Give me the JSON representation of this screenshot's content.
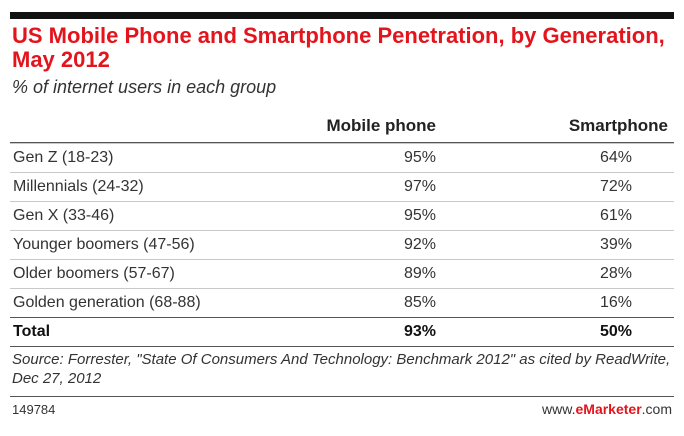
{
  "title": "US Mobile Phone and Smartphone Penetration, by Generation, May 2012",
  "subtitle": "% of internet users in each group",
  "columns": [
    "",
    "Mobile phone",
    "Smartphone"
  ],
  "rows": [
    {
      "label": "Gen Z (18-23)",
      "mobile": "95%",
      "smart": "64%"
    },
    {
      "label": "Millennials (24-32)",
      "mobile": "97%",
      "smart": "72%"
    },
    {
      "label": "Gen X (33-46)",
      "mobile": "95%",
      "smart": "61%"
    },
    {
      "label": "Younger boomers (47-56)",
      "mobile": "92%",
      "smart": "39%"
    },
    {
      "label": "Older boomers (57-67)",
      "mobile": "89%",
      "smart": "28%"
    },
    {
      "label": "Golden generation (68-88)",
      "mobile": "85%",
      "smart": "16%"
    }
  ],
  "total": {
    "label": "Total",
    "mobile": "93%",
    "smart": "50%"
  },
  "source": "Source: Forrester, \"State Of Consumers And Technology: Benchmark 2012\" as cited by ReadWrite, Dec 27, 2012",
  "footer": {
    "id": "149784",
    "brand_prefix": "www.",
    "brand_name": "eMarketer",
    "brand_suffix": ".com"
  },
  "colors": {
    "title": "#e3141c",
    "rule": "#111111"
  },
  "chart_data": {
    "type": "table",
    "title": "US Mobile Phone and Smartphone Penetration, by Generation, May 2012",
    "subtitle": "% of internet users in each group",
    "categories": [
      "Gen Z (18-23)",
      "Millennials (24-32)",
      "Gen X (33-46)",
      "Younger boomers (47-56)",
      "Older boomers (57-67)",
      "Golden generation (68-88)",
      "Total"
    ],
    "series": [
      {
        "name": "Mobile phone",
        "values": [
          95,
          97,
          95,
          92,
          89,
          85,
          93
        ]
      },
      {
        "name": "Smartphone",
        "values": [
          64,
          72,
          61,
          39,
          28,
          16,
          50
        ]
      }
    ]
  }
}
